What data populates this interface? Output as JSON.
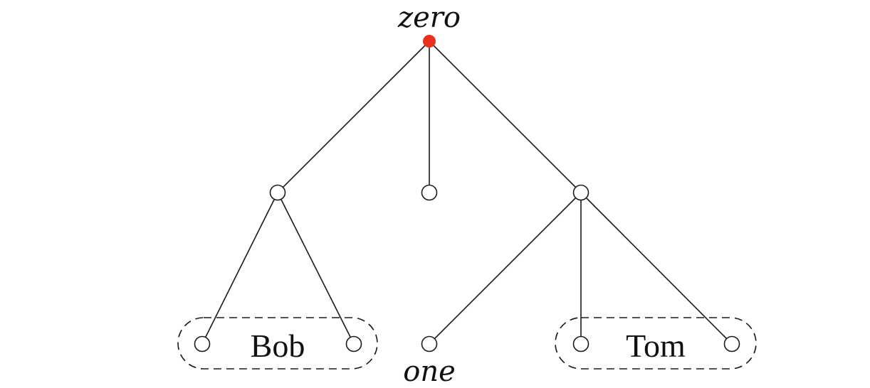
{
  "diagram": {
    "type": "tree",
    "colors": {
      "root": "#e8321e",
      "edge": "#1a1a1a",
      "node_fill": "#ffffff"
    },
    "labels": {
      "root": "zero",
      "leaf": "one"
    },
    "groups": [
      {
        "id": "bob",
        "label": "Bob",
        "members": [
          "a1",
          "a2"
        ]
      },
      {
        "id": "tom",
        "label": "Tom",
        "members": [
          "c2",
          "c3"
        ]
      }
    ],
    "nodes": [
      {
        "id": "root",
        "kind": "root",
        "label_key": "root"
      },
      {
        "id": "a",
        "kind": "internal"
      },
      {
        "id": "b",
        "kind": "leaf"
      },
      {
        "id": "c",
        "kind": "internal"
      },
      {
        "id": "a1",
        "kind": "leaf"
      },
      {
        "id": "a2",
        "kind": "leaf"
      },
      {
        "id": "c1",
        "kind": "leaf",
        "label_key": "leaf"
      },
      {
        "id": "c2",
        "kind": "leaf"
      },
      {
        "id": "c3",
        "kind": "leaf"
      }
    ],
    "edges": [
      [
        "root",
        "a"
      ],
      [
        "root",
        "b"
      ],
      [
        "root",
        "c"
      ],
      [
        "a",
        "a1"
      ],
      [
        "a",
        "a2"
      ],
      [
        "c",
        "c1"
      ],
      [
        "c",
        "c2"
      ],
      [
        "c",
        "c3"
      ]
    ]
  }
}
